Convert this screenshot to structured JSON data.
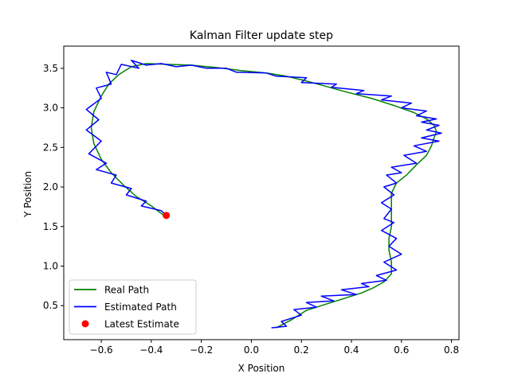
{
  "chart_data": {
    "type": "line",
    "title": "Kalman Filter update step",
    "xlabel": "X Position",
    "ylabel": "Y Position",
    "xlim": [
      -0.75,
      0.83
    ],
    "ylim": [
      0.07,
      3.78
    ],
    "grid": false,
    "legend_position": "lower-left",
    "x_ticks": [
      -0.6,
      -0.4,
      -0.2,
      0.0,
      0.2,
      0.4,
      0.6,
      0.8
    ],
    "x_tick_labels": [
      "−0.6",
      "−0.4",
      "−0.2",
      "0.0",
      "0.2",
      "0.4",
      "0.6",
      "0.8"
    ],
    "y_ticks": [
      0.5,
      1.0,
      1.5,
      2.0,
      2.5,
      3.0,
      3.5
    ],
    "y_tick_labels": [
      "0.5",
      "1.0",
      "1.5",
      "2.0",
      "2.5",
      "3.0",
      "3.5"
    ],
    "series": [
      {
        "name": "Real Path",
        "color": "#008000",
        "kind": "line",
        "x": [
          0.1,
          0.16,
          0.22,
          0.3,
          0.38,
          0.44,
          0.49,
          0.53,
          0.56,
          0.56,
          0.55,
          0.55,
          0.56,
          0.56,
          0.56,
          0.56,
          0.58,
          0.62,
          0.66,
          0.7,
          0.72,
          0.73,
          0.74,
          0.73,
          0.7,
          0.65,
          0.57,
          0.48,
          0.38,
          0.3,
          0.22,
          0.14,
          0.06,
          -0.04,
          -0.14,
          -0.24,
          -0.34,
          -0.42,
          -0.48,
          -0.53,
          -0.57,
          -0.6,
          -0.63,
          -0.64,
          -0.63,
          -0.6,
          -0.56,
          -0.51,
          -0.46,
          -0.4,
          -0.35
        ],
        "y": [
          0.22,
          0.32,
          0.44,
          0.52,
          0.6,
          0.66,
          0.73,
          0.8,
          0.9,
          1.05,
          1.2,
          1.35,
          1.5,
          1.65,
          1.8,
          1.92,
          2.05,
          2.15,
          2.28,
          2.4,
          2.52,
          2.62,
          2.7,
          2.78,
          2.86,
          2.94,
          3.03,
          3.12,
          3.2,
          3.27,
          3.34,
          3.4,
          3.44,
          3.47,
          3.51,
          3.54,
          3.55,
          3.56,
          3.52,
          3.42,
          3.3,
          3.15,
          2.95,
          2.75,
          2.55,
          2.35,
          2.18,
          2.02,
          1.88,
          1.76,
          1.64
        ]
      },
      {
        "name": "Estimated Path",
        "color": "#0000ff",
        "kind": "line",
        "x": [
          0.08,
          0.14,
          0.12,
          0.2,
          0.17,
          0.26,
          0.22,
          0.33,
          0.28,
          0.42,
          0.36,
          0.47,
          0.44,
          0.54,
          0.5,
          0.58,
          0.53,
          0.6,
          0.55,
          0.58,
          0.52,
          0.57,
          0.53,
          0.56,
          0.52,
          0.57,
          0.53,
          0.58,
          0.54,
          0.6,
          0.56,
          0.66,
          0.61,
          0.7,
          0.65,
          0.75,
          0.68,
          0.76,
          0.7,
          0.75,
          0.68,
          0.74,
          0.66,
          0.7,
          0.6,
          0.64,
          0.52,
          0.56,
          0.42,
          0.45,
          0.32,
          0.34,
          0.2,
          0.22,
          0.1,
          0.06,
          -0.06,
          -0.1,
          -0.18,
          -0.24,
          -0.3,
          -0.36,
          -0.42,
          -0.48,
          -0.45,
          -0.52,
          -0.54,
          -0.58,
          -0.56,
          -0.62,
          -0.6,
          -0.66,
          -0.61,
          -0.66,
          -0.6,
          -0.65,
          -0.58,
          -0.62,
          -0.54,
          -0.56,
          -0.48,
          -0.5,
          -0.42,
          -0.44,
          -0.36,
          -0.34
        ],
        "y": [
          0.22,
          0.24,
          0.3,
          0.38,
          0.45,
          0.48,
          0.54,
          0.56,
          0.62,
          0.64,
          0.7,
          0.74,
          0.78,
          0.82,
          0.88,
          0.95,
          1.05,
          1.15,
          1.25,
          1.35,
          1.45,
          1.55,
          1.6,
          1.72,
          1.8,
          1.9,
          2.0,
          2.05,
          2.15,
          2.18,
          2.25,
          2.3,
          2.4,
          2.45,
          2.52,
          2.58,
          2.62,
          2.68,
          2.72,
          2.78,
          2.82,
          2.86,
          2.9,
          2.96,
          3.0,
          3.06,
          3.1,
          3.15,
          3.18,
          3.22,
          3.26,
          3.3,
          3.32,
          3.38,
          3.4,
          3.44,
          3.45,
          3.5,
          3.5,
          3.54,
          3.52,
          3.56,
          3.54,
          3.6,
          3.5,
          3.55,
          3.42,
          3.45,
          3.3,
          3.25,
          3.12,
          2.98,
          2.85,
          2.72,
          2.58,
          2.42,
          2.3,
          2.22,
          2.15,
          2.05,
          1.98,
          1.9,
          1.82,
          1.76,
          1.7,
          1.64
        ]
      },
      {
        "name": "Latest Estimate",
        "color": "#ff0000",
        "kind": "scatter",
        "x": [
          -0.34
        ],
        "y": [
          1.64
        ]
      }
    ]
  }
}
